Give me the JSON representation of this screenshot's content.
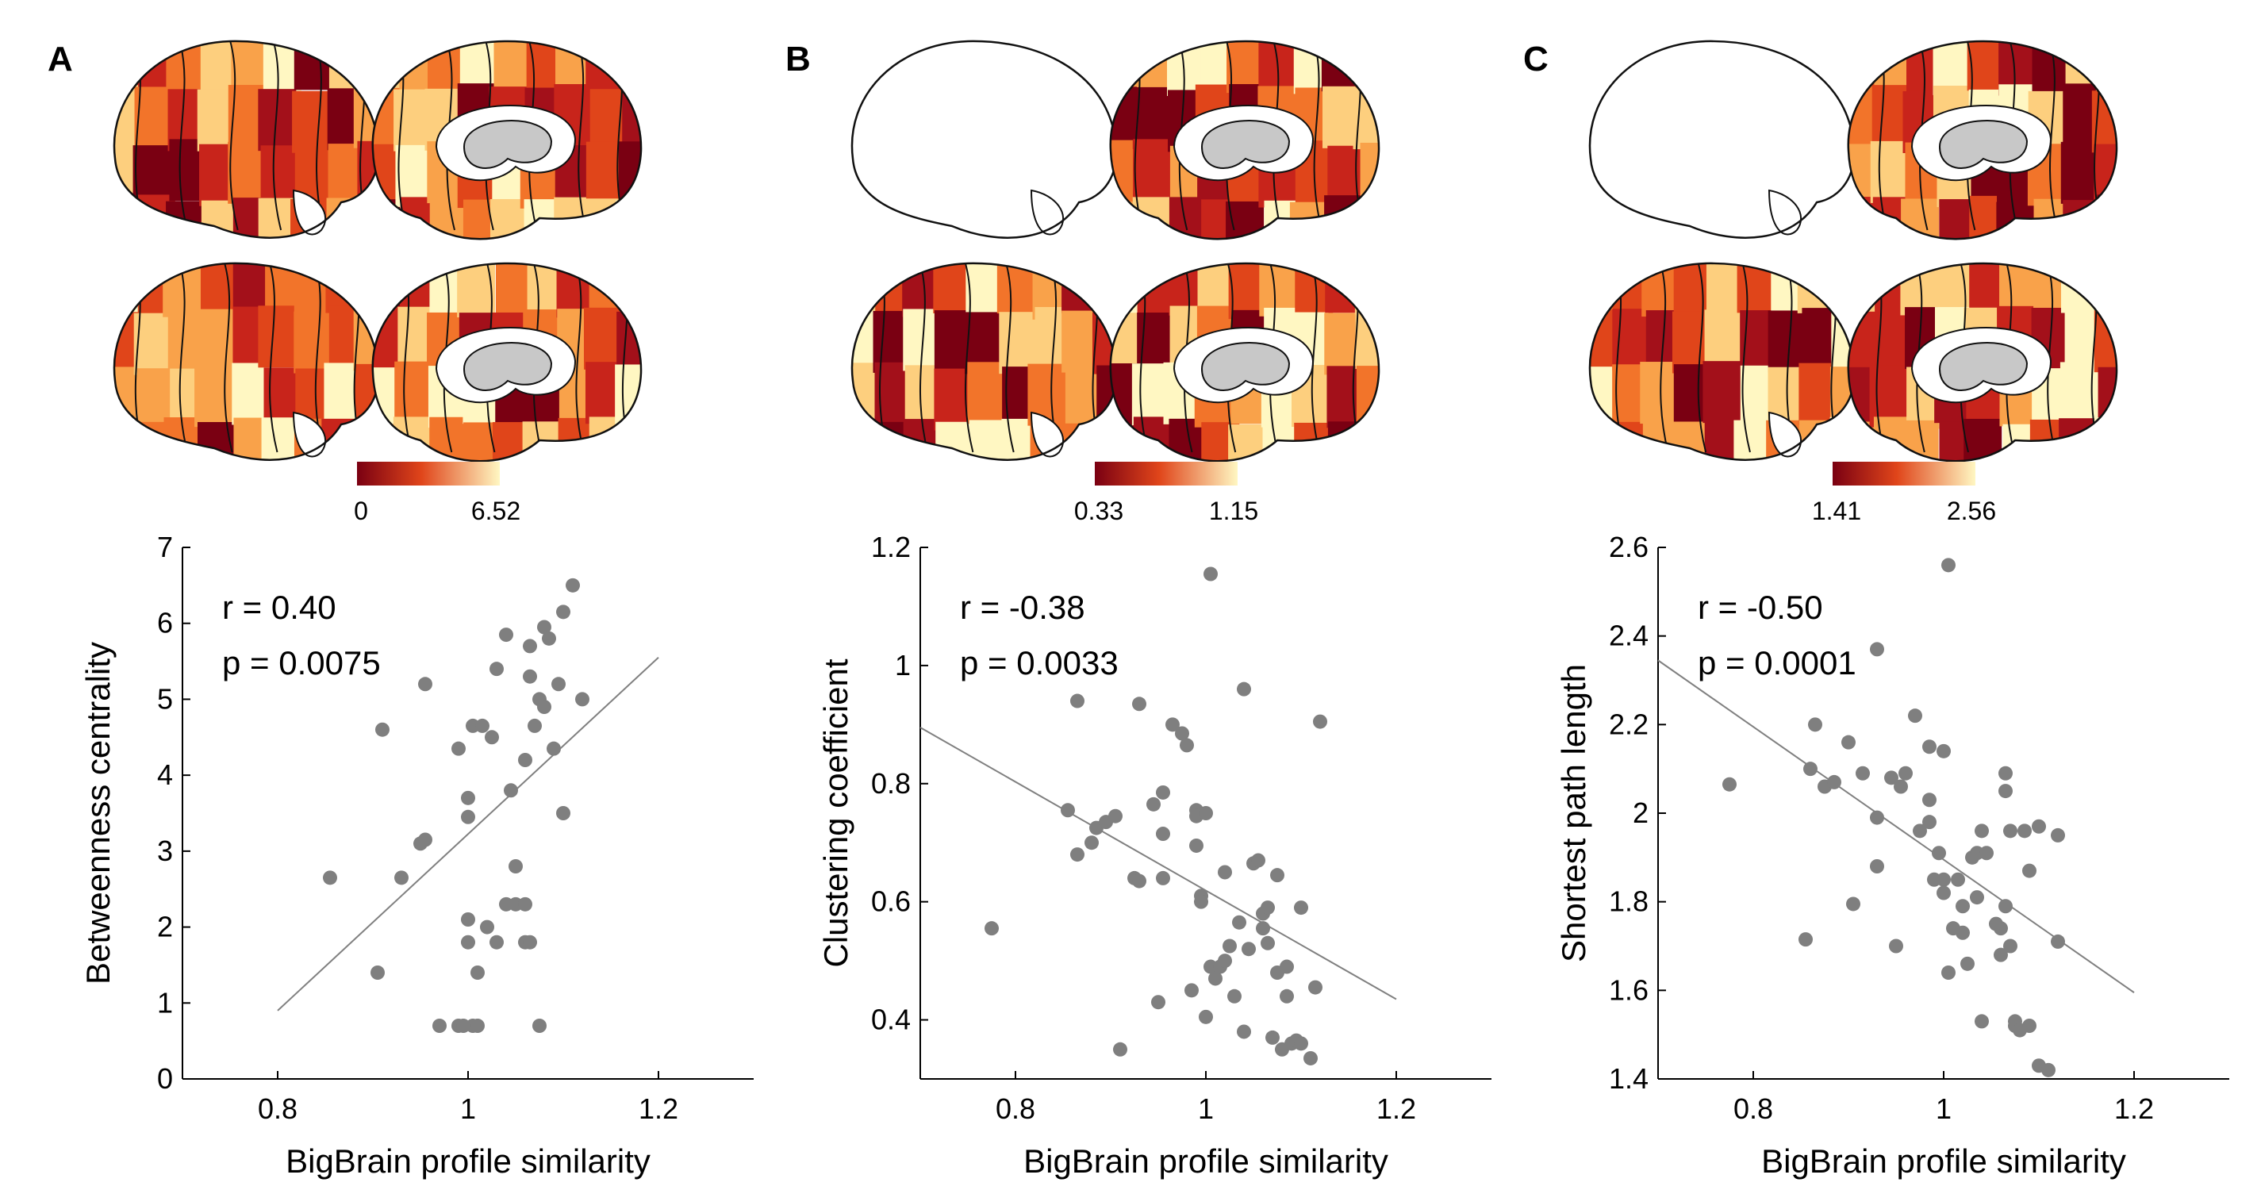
{
  "colors": {
    "marker": "#7f7f7f",
    "fit_line": "#808080",
    "map_dark": "#7a0012",
    "map_mid": "#e0451a",
    "map_light": "#fff7c2",
    "subcortex": "#c8c8c8"
  },
  "chart_data": [
    {
      "type": "scatter",
      "panel": "A",
      "map_colorbar": {
        "min_label": "0",
        "max_label": "6.52",
        "min": 0,
        "max": 6.52
      },
      "xlabel": "BigBrain profile similarity",
      "ylabel": "Betweenness centrality",
      "xlim": [
        0.7,
        1.3
      ],
      "ylim": [
        0,
        7
      ],
      "xticks": [
        0.8,
        1,
        1.2
      ],
      "xtick_labels": [
        "0.8",
        "1",
        "1.2"
      ],
      "yticks": [
        0,
        1,
        2,
        3,
        4,
        5,
        6,
        7
      ],
      "ytick_labels": [
        "0",
        "1",
        "2",
        "3",
        "4",
        "5",
        "6",
        "7"
      ],
      "stat_r": "r = 0.40",
      "stat_p": "p = 0.0075",
      "fit_line": [
        [
          0.8,
          0.9
        ],
        [
          1.2,
          5.55
        ]
      ],
      "points": [
        [
          0.855,
          2.65
        ],
        [
          0.905,
          1.4
        ],
        [
          0.91,
          4.6
        ],
        [
          0.93,
          2.65
        ],
        [
          0.95,
          3.1
        ],
        [
          0.955,
          3.15
        ],
        [
          0.955,
          5.2
        ],
        [
          0.97,
          0.7
        ],
        [
          0.99,
          0.7
        ],
        [
          0.995,
          0.7
        ],
        [
          0.99,
          4.35
        ],
        [
          1.0,
          1.8
        ],
        [
          1.0,
          2.1
        ],
        [
          1.0,
          3.45
        ],
        [
          1.0,
          3.7
        ],
        [
          1.005,
          0.7
        ],
        [
          1.01,
          0.7
        ],
        [
          1.01,
          1.4
        ],
        [
          1.005,
          4.65
        ],
        [
          1.015,
          4.65
        ],
        [
          1.02,
          2.0
        ],
        [
          1.025,
          4.5
        ],
        [
          1.03,
          1.8
        ],
        [
          1.03,
          5.4
        ],
        [
          1.04,
          2.3
        ],
        [
          1.045,
          3.8
        ],
        [
          1.04,
          5.85
        ],
        [
          1.05,
          2.3
        ],
        [
          1.05,
          2.8
        ],
        [
          1.06,
          1.8
        ],
        [
          1.065,
          1.8
        ],
        [
          1.06,
          2.3
        ],
        [
          1.06,
          4.2
        ],
        [
          1.065,
          5.3
        ],
        [
          1.065,
          5.7
        ],
        [
          1.07,
          4.65
        ],
        [
          1.075,
          0.7
        ],
        [
          1.075,
          5.0
        ],
        [
          1.08,
          4.9
        ],
        [
          1.08,
          5.95
        ],
        [
          1.085,
          5.8
        ],
        [
          1.09,
          4.35
        ],
        [
          1.095,
          5.2
        ],
        [
          1.1,
          3.5
        ],
        [
          1.1,
          6.15
        ],
        [
          1.11,
          6.5
        ],
        [
          1.12,
          5.0
        ]
      ]
    },
    {
      "type": "scatter",
      "panel": "B",
      "map_colorbar": {
        "min_label": "0.33",
        "max_label": "1.15",
        "min": 0.33,
        "max": 1.15
      },
      "xlabel": "BigBrain profile similarity",
      "ylabel": "Clustering coefficient",
      "xlim": [
        0.7,
        1.3
      ],
      "ylim": [
        0.3,
        1.2
      ],
      "xticks": [
        0.8,
        1,
        1.2
      ],
      "xtick_labels": [
        "0.8",
        "1",
        "1.2"
      ],
      "yticks": [
        0.4,
        0.6,
        0.8,
        1.0,
        1.2
      ],
      "ytick_labels": [
        "0.4",
        "0.6",
        "0.8",
        "1",
        "1.2"
      ],
      "stat_r": "r = -0.38",
      "stat_p": "p = 0.0033",
      "fit_line": [
        [
          0.7,
          0.895
        ],
        [
          1.2,
          0.435
        ]
      ],
      "points": [
        [
          0.775,
          0.555
        ],
        [
          0.855,
          0.755
        ],
        [
          0.865,
          0.68
        ],
        [
          0.865,
          0.94
        ],
        [
          0.88,
          0.7
        ],
        [
          0.885,
          0.725
        ],
        [
          0.895,
          0.735
        ],
        [
          0.905,
          0.745
        ],
        [
          0.91,
          0.35
        ],
        [
          0.925,
          0.64
        ],
        [
          0.93,
          0.635
        ],
        [
          0.93,
          0.935
        ],
        [
          0.945,
          0.765
        ],
        [
          0.95,
          0.43
        ],
        [
          0.955,
          0.785
        ],
        [
          0.955,
          0.715
        ],
        [
          0.955,
          0.64
        ],
        [
          0.965,
          0.9
        ],
        [
          0.975,
          0.885
        ],
        [
          0.98,
          0.865
        ],
        [
          0.985,
          0.45
        ],
        [
          0.99,
          0.755
        ],
        [
          0.99,
          0.745
        ],
        [
          0.99,
          0.695
        ],
        [
          0.995,
          0.61
        ],
        [
          0.995,
          0.6
        ],
        [
          1.0,
          0.75
        ],
        [
          1.0,
          0.405
        ],
        [
          1.005,
          1.155
        ],
        [
          1.005,
          0.49
        ],
        [
          1.01,
          0.47
        ],
        [
          1.015,
          0.49
        ],
        [
          1.02,
          0.5
        ],
        [
          1.02,
          0.65
        ],
        [
          1.025,
          0.525
        ],
        [
          1.03,
          0.44
        ],
        [
          1.035,
          0.565
        ],
        [
          1.04,
          0.96
        ],
        [
          1.04,
          0.38
        ],
        [
          1.045,
          0.52
        ],
        [
          1.05,
          0.665
        ],
        [
          1.055,
          0.67
        ],
        [
          1.06,
          0.58
        ],
        [
          1.06,
          0.555
        ],
        [
          1.065,
          0.53
        ],
        [
          1.065,
          0.59
        ],
        [
          1.07,
          0.37
        ],
        [
          1.075,
          0.48
        ],
        [
          1.075,
          0.645
        ],
        [
          1.08,
          0.35
        ],
        [
          1.085,
          0.49
        ],
        [
          1.085,
          0.44
        ],
        [
          1.09,
          0.36
        ],
        [
          1.095,
          0.365
        ],
        [
          1.1,
          0.59
        ],
        [
          1.1,
          0.36
        ],
        [
          1.11,
          0.335
        ],
        [
          1.115,
          0.455
        ],
        [
          1.12,
          0.905
        ]
      ]
    },
    {
      "type": "scatter",
      "panel": "C",
      "map_colorbar": {
        "min_label": "1.41",
        "max_label": "2.56",
        "min": 1.41,
        "max": 2.56
      },
      "xlabel": "BigBrain profile similarity",
      "ylabel": "Shortest path length",
      "xlim": [
        0.7,
        1.3
      ],
      "ylim": [
        1.4,
        2.6
      ],
      "xticks": [
        0.8,
        1,
        1.2
      ],
      "xtick_labels": [
        "0.8",
        "1",
        "1.2"
      ],
      "yticks": [
        1.4,
        1.6,
        1.8,
        2.0,
        2.2,
        2.4,
        2.6
      ],
      "ytick_labels": [
        "1.4",
        "1.6",
        "1.8",
        "2",
        "2.2",
        "2.4",
        "2.6"
      ],
      "stat_r": "r = -0.50",
      "stat_p": "p = 0.0001",
      "fit_line": [
        [
          0.7,
          2.345
        ],
        [
          1.2,
          1.595
        ]
      ],
      "points": [
        [
          0.775,
          2.065
        ],
        [
          0.855,
          1.715
        ],
        [
          0.86,
          2.1
        ],
        [
          0.865,
          2.2
        ],
        [
          0.875,
          2.06
        ],
        [
          0.885,
          2.07
        ],
        [
          0.9,
          2.16
        ],
        [
          0.905,
          1.795
        ],
        [
          0.915,
          2.09
        ],
        [
          0.93,
          2.37
        ],
        [
          0.93,
          1.99
        ],
        [
          0.93,
          1.88
        ],
        [
          0.945,
          2.08
        ],
        [
          0.95,
          1.7
        ],
        [
          0.955,
          2.06
        ],
        [
          0.96,
          2.09
        ],
        [
          0.97,
          2.22
        ],
        [
          0.975,
          1.96
        ],
        [
          0.985,
          1.98
        ],
        [
          0.985,
          2.03
        ],
        [
          0.985,
          2.15
        ],
        [
          0.99,
          1.85
        ],
        [
          0.995,
          1.91
        ],
        [
          1.0,
          1.85
        ],
        [
          1.0,
          2.14
        ],
        [
          1.0,
          1.82
        ],
        [
          1.005,
          2.56
        ],
        [
          1.005,
          1.64
        ],
        [
          1.01,
          1.74
        ],
        [
          1.015,
          1.85
        ],
        [
          1.02,
          1.79
        ],
        [
          1.02,
          1.73
        ],
        [
          1.025,
          1.66
        ],
        [
          1.03,
          1.9
        ],
        [
          1.035,
          1.81
        ],
        [
          1.035,
          1.91
        ],
        [
          1.04,
          1.53
        ],
        [
          1.04,
          1.96
        ],
        [
          1.045,
          1.91
        ],
        [
          1.055,
          1.75
        ],
        [
          1.06,
          1.74
        ],
        [
          1.06,
          1.68
        ],
        [
          1.065,
          1.79
        ],
        [
          1.065,
          2.05
        ],
        [
          1.065,
          2.09
        ],
        [
          1.07,
          1.96
        ],
        [
          1.07,
          1.7
        ],
        [
          1.075,
          1.52
        ],
        [
          1.075,
          1.53
        ],
        [
          1.08,
          1.51
        ],
        [
          1.085,
          1.96
        ],
        [
          1.09,
          1.52
        ],
        [
          1.09,
          1.87
        ],
        [
          1.1,
          1.43
        ],
        [
          1.1,
          1.97
        ],
        [
          1.11,
          1.42
        ],
        [
          1.12,
          1.71
        ],
        [
          1.12,
          1.95
        ]
      ]
    }
  ]
}
